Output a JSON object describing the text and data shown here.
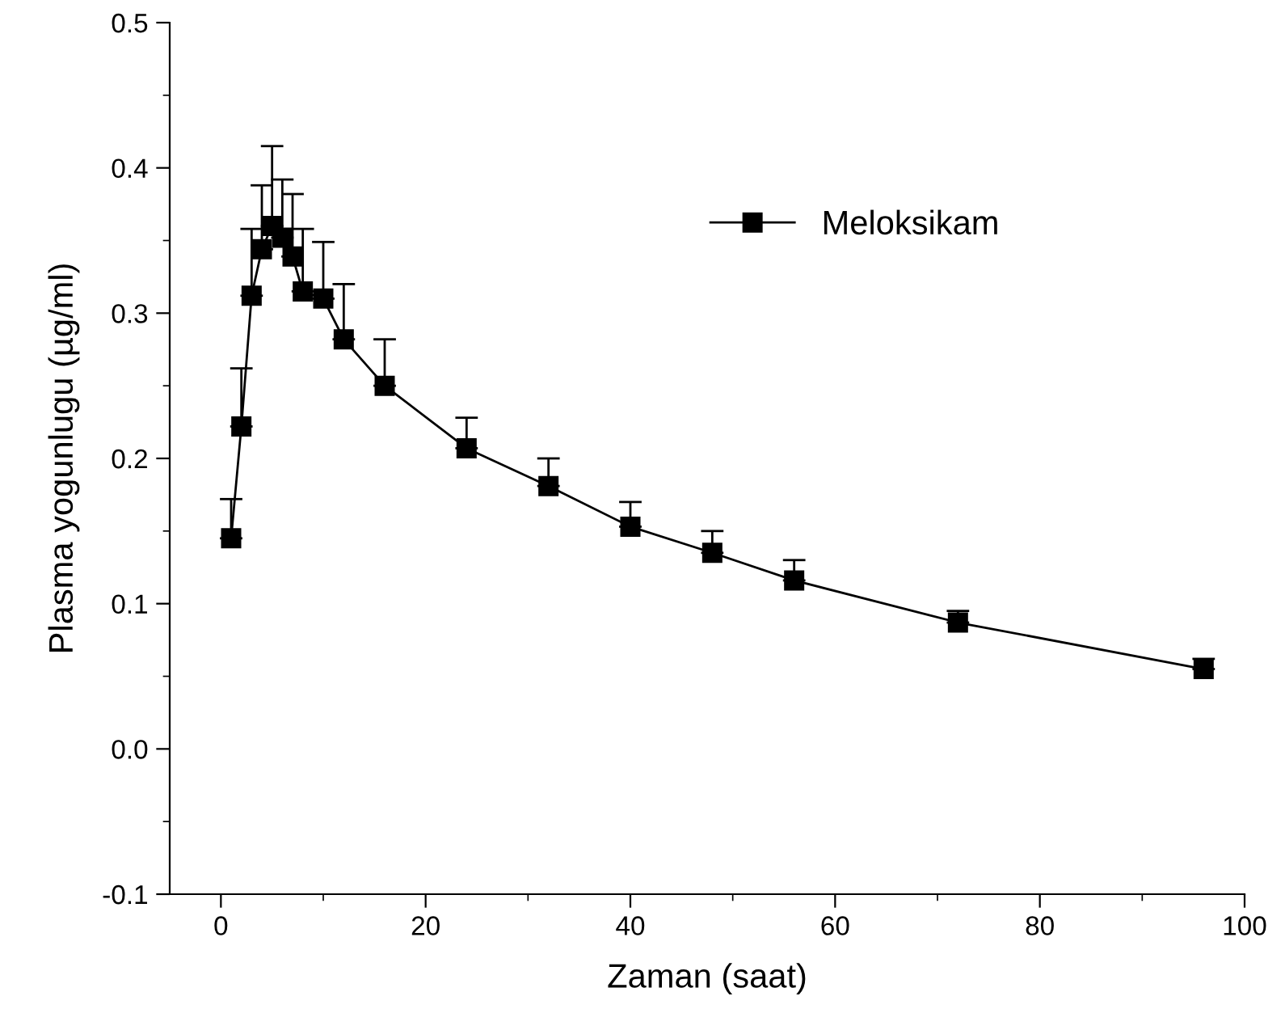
{
  "chart_data": {
    "type": "line",
    "xlabel": "Zaman (saat)",
    "ylabel": "Plasma yogunlugu (µg/ml)",
    "x": [
      1,
      2,
      3,
      4,
      5,
      6,
      7,
      8,
      10,
      12,
      16,
      24,
      32,
      40,
      48,
      56,
      72,
      96
    ],
    "series": [
      {
        "name": "Meloksikam",
        "color": "#000000",
        "values": [
          0.145,
          0.222,
          0.312,
          0.344,
          0.36,
          0.352,
          0.339,
          0.315,
          0.31,
          0.282,
          0.25,
          0.207,
          0.181,
          0.153,
          0.135,
          0.116,
          0.087,
          0.055
        ],
        "errors": [
          [
            0.145,
            0.172
          ],
          [
            0.222,
            0.262
          ],
          [
            0.312,
            0.358
          ],
          [
            0.344,
            0.388
          ],
          [
            0.36,
            0.415
          ],
          [
            0.352,
            0.392
          ],
          [
            0.339,
            0.382
          ],
          [
            0.315,
            0.358
          ],
          [
            0.31,
            0.349
          ],
          [
            0.282,
            0.32
          ],
          [
            0.25,
            0.282
          ],
          [
            0.207,
            0.228
          ],
          [
            0.181,
            0.2
          ],
          [
            0.153,
            0.17
          ],
          [
            0.135,
            0.15
          ],
          [
            0.116,
            0.13
          ],
          [
            0.087,
            0.095
          ],
          [
            0.055,
            0.062
          ]
        ]
      }
    ],
    "xlim": [
      -5,
      100
    ],
    "xticks": [
      0,
      20,
      40,
      60,
      80,
      100
    ],
    "ylim": [
      -0.1,
      0.5
    ],
    "yticks": [
      {
        "value": -0.1,
        "label": "-0.1"
      },
      {
        "value": 0.0,
        "label": "0.0"
      },
      0.1,
      0.2,
      0.3,
      0.4,
      0.5
    ],
    "marker": "square",
    "line_style": "solid",
    "legend": "top right",
    "grid": false
  }
}
